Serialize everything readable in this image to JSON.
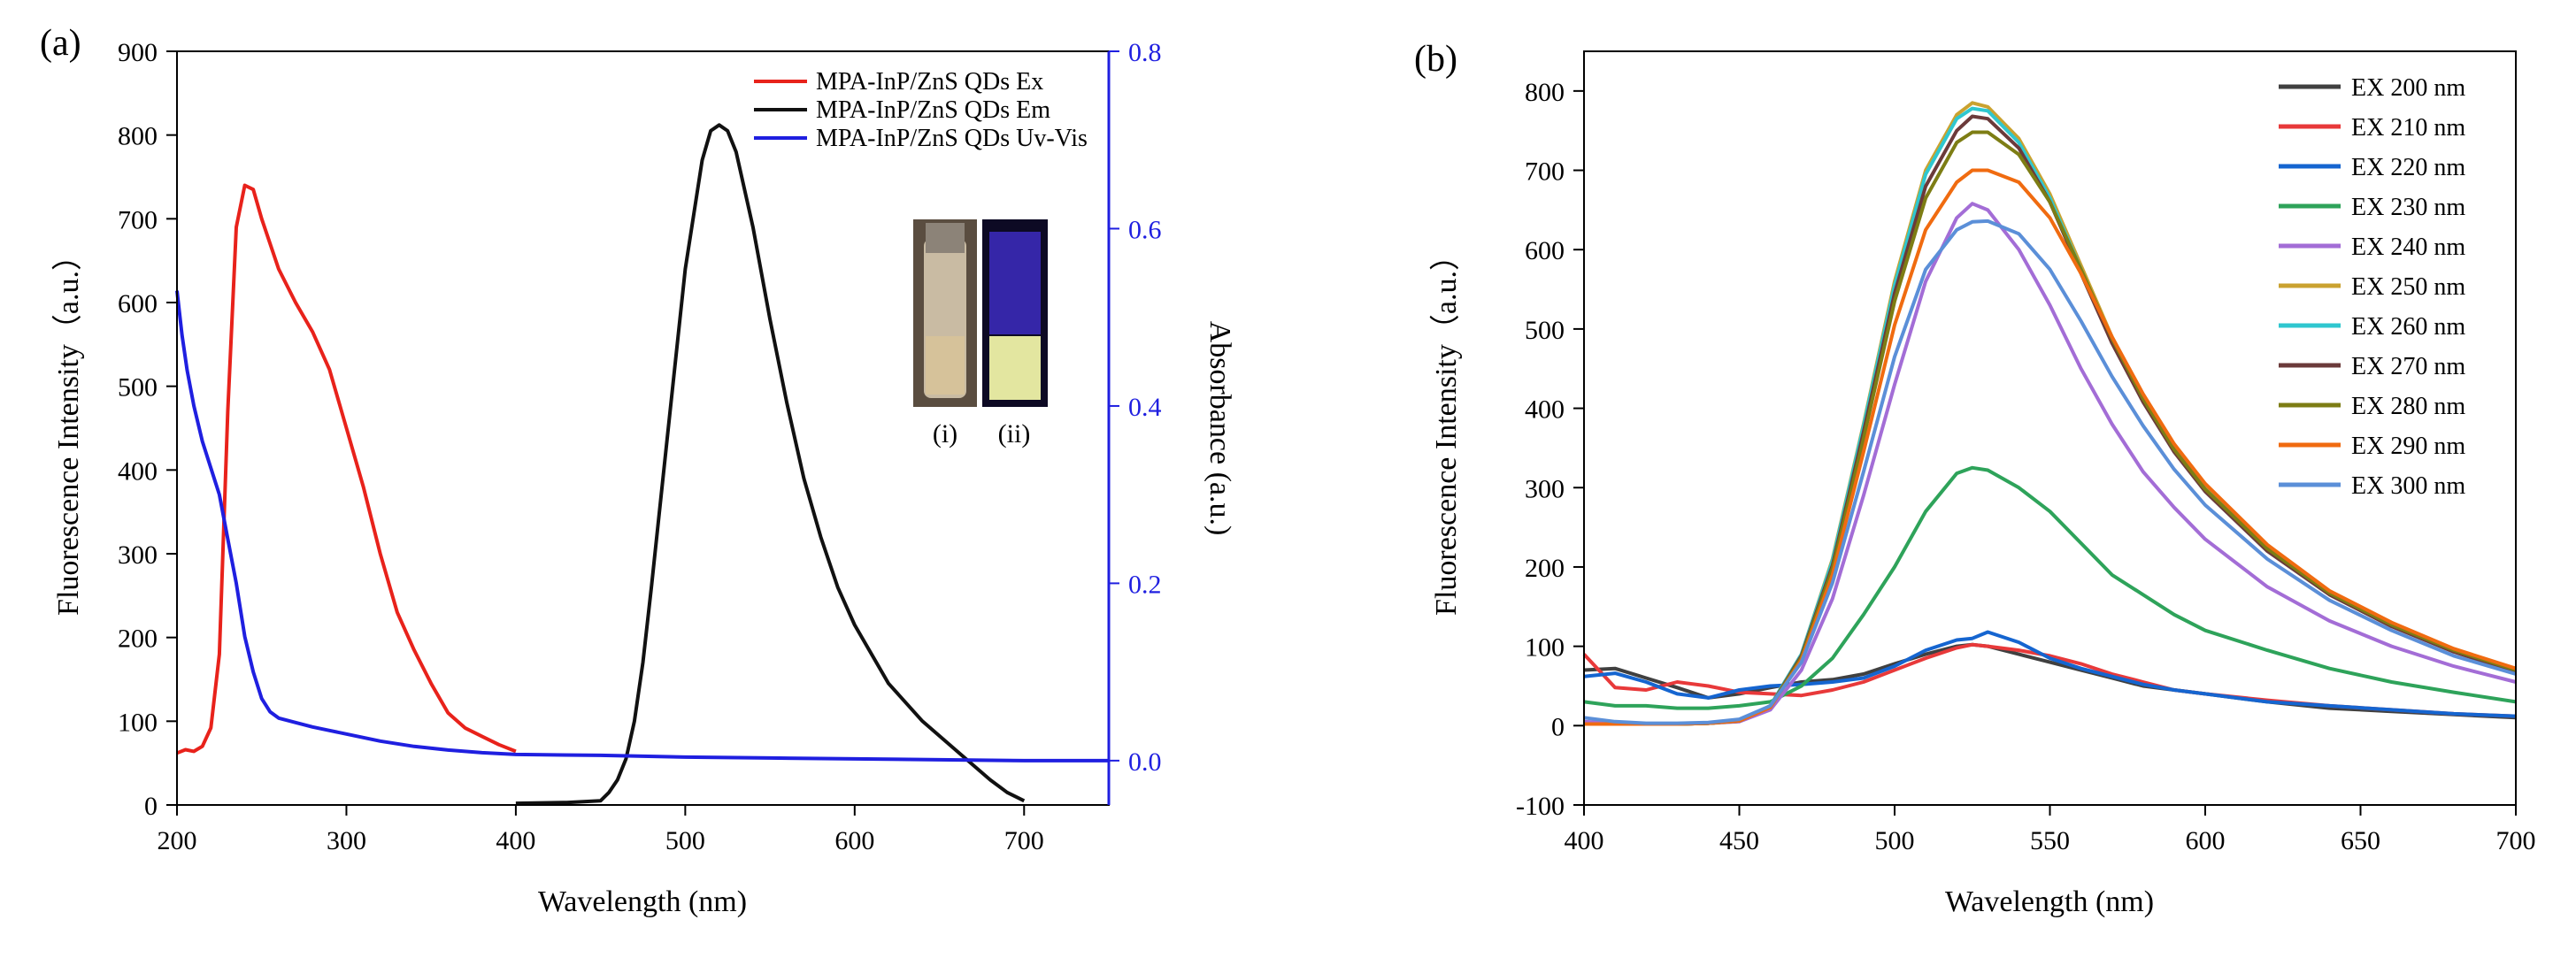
{
  "chart_data": [
    {
      "type": "line",
      "panel_label": "(a)",
      "xlabel": "Wavelength (nm)",
      "ylabel": "Fluorescence Intensity（a.u.）",
      "y2label": "Absorbance (a.u.)",
      "xlim": [
        200,
        750
      ],
      "ylim": [
        0,
        900
      ],
      "y2lim": [
        -0.05,
        0.8
      ],
      "xticks": [
        200,
        300,
        400,
        500,
        600,
        700
      ],
      "yticks": [
        0,
        100,
        200,
        300,
        400,
        500,
        600,
        700,
        800,
        900
      ],
      "y2ticks": [
        "0.0",
        "0.2",
        "0.4",
        "0.6",
        "0.8"
      ],
      "legend_position": "top-right",
      "inset": {
        "labels": [
          "(i)",
          "(ii)"
        ]
      },
      "series": [
        {
          "name": "MPA-InP/ZnS QDs Ex",
          "color": "#e8221b",
          "axis": "left",
          "x": [
            200,
            205,
            210,
            215,
            220,
            225,
            230,
            235,
            240,
            245,
            250,
            260,
            270,
            280,
            290,
            300,
            310,
            320,
            330,
            340,
            350,
            360,
            370,
            380,
            390,
            400
          ],
          "y": [
            62,
            66,
            64,
            70,
            92,
            180,
            470,
            690,
            740,
            735,
            700,
            640,
            600,
            565,
            520,
            450,
            380,
            300,
            230,
            185,
            145,
            110,
            92,
            82,
            72,
            64
          ]
        },
        {
          "name": "MPA-InP/ZnS QDs Em",
          "color": "#111111",
          "axis": "left",
          "x": [
            400,
            430,
            450,
            455,
            460,
            465,
            470,
            475,
            480,
            490,
            500,
            510,
            515,
            520,
            525,
            530,
            540,
            550,
            560,
            570,
            580,
            590,
            600,
            620,
            640,
            660,
            680,
            690,
            700
          ],
          "y": [
            2,
            3,
            5,
            15,
            30,
            55,
            100,
            170,
            260,
            450,
            640,
            770,
            805,
            812,
            805,
            780,
            690,
            580,
            480,
            390,
            320,
            260,
            215,
            145,
            100,
            65,
            30,
            15,
            5
          ]
        },
        {
          "name": "MPA-InP/ZnS QDs Uv-Vis",
          "color": "#1f1fe0",
          "axis": "right",
          "x": [
            200,
            203,
            206,
            210,
            215,
            220,
            225,
            230,
            235,
            240,
            245,
            250,
            255,
            260,
            270,
            280,
            290,
            300,
            320,
            340,
            360,
            380,
            400,
            450,
            500,
            550,
            600,
            650,
            700,
            750
          ],
          "y": [
            0.53,
            0.48,
            0.44,
            0.4,
            0.36,
            0.33,
            0.3,
            0.25,
            0.2,
            0.14,
            0.1,
            0.07,
            0.055,
            0.048,
            0.043,
            0.038,
            0.034,
            0.03,
            0.022,
            0.016,
            0.012,
            0.009,
            0.007,
            0.006,
            0.004,
            0.003,
            0.002,
            0.001,
            0.0,
            0.0
          ]
        }
      ]
    },
    {
      "type": "line",
      "panel_label": "(b)",
      "xlabel": "Wavelength (nm)",
      "ylabel": "Fluorescence Intensity（a.u.）",
      "xlim": [
        400,
        700
      ],
      "ylim": [
        -100,
        850
      ],
      "xticks": [
        400,
        450,
        500,
        550,
        600,
        650,
        700
      ],
      "yticks": [
        -100,
        0,
        100,
        200,
        300,
        400,
        500,
        600,
        700,
        800
      ],
      "legend_position": "top-right",
      "x": [
        400,
        410,
        420,
        430,
        440,
        450,
        460,
        470,
        480,
        490,
        500,
        510,
        520,
        525,
        530,
        540,
        550,
        560,
        570,
        580,
        590,
        600,
        620,
        640,
        660,
        680,
        700
      ],
      "series": [
        {
          "name": "EX 200 nm",
          "color": "#404040",
          "y": [
            70,
            72,
            60,
            48,
            35,
            40,
            48,
            55,
            58,
            65,
            78,
            90,
            100,
            102,
            100,
            90,
            80,
            70,
            60,
            50,
            45,
            40,
            30,
            22,
            18,
            14,
            10
          ]
        },
        {
          "name": "EX 210 nm",
          "color": "#e8393a",
          "y": [
            90,
            48,
            45,
            55,
            50,
            42,
            40,
            38,
            45,
            55,
            70,
            85,
            98,
            102,
            100,
            95,
            88,
            78,
            65,
            55,
            45,
            40,
            32,
            25,
            20,
            15,
            12
          ]
        },
        {
          "name": "EX 220 nm",
          "color": "#1565d0",
          "y": [
            62,
            66,
            55,
            40,
            35,
            45,
            50,
            52,
            55,
            60,
            75,
            95,
            108,
            110,
            118,
            105,
            85,
            72,
            62,
            52,
            45,
            40,
            30,
            25,
            20,
            15,
            12
          ]
        },
        {
          "name": "EX 230 nm",
          "color": "#2ea35a",
          "y": [
            30,
            25,
            25,
            22,
            22,
            25,
            30,
            50,
            85,
            140,
            200,
            270,
            318,
            325,
            322,
            300,
            270,
            230,
            190,
            165,
            140,
            120,
            95,
            72,
            55,
            42,
            30
          ]
        },
        {
          "name": "EX 240 nm",
          "color": "#a36dd6",
          "y": [
            5,
            3,
            2,
            2,
            3,
            5,
            20,
            70,
            160,
            290,
            430,
            560,
            640,
            658,
            650,
            600,
            530,
            450,
            380,
            320,
            275,
            235,
            175,
            132,
            100,
            75,
            55
          ]
        },
        {
          "name": "EX 250 nm",
          "color": "#caa230",
          "y": [
            2,
            2,
            2,
            2,
            3,
            6,
            25,
            90,
            210,
            380,
            560,
            700,
            770,
            785,
            780,
            740,
            670,
            580,
            490,
            415,
            350,
            300,
            225,
            168,
            128,
            95,
            70
          ]
        },
        {
          "name": "EX 260 nm",
          "color": "#2fc7cf",
          "y": [
            2,
            2,
            2,
            2,
            3,
            6,
            25,
            90,
            208,
            378,
            555,
            695,
            765,
            778,
            775,
            735,
            665,
            575,
            487,
            412,
            348,
            298,
            223,
            166,
            127,
            94,
            69
          ]
        },
        {
          "name": "EX 270 nm",
          "color": "#6b3a3a",
          "y": [
            2,
            2,
            2,
            2,
            3,
            6,
            24,
            88,
            202,
            370,
            545,
            680,
            750,
            768,
            765,
            728,
            660,
            570,
            482,
            408,
            345,
            295,
            220,
            165,
            125,
            93,
            68
          ]
        },
        {
          "name": "EX 280 nm",
          "color": "#7d7d14",
          "y": [
            2,
            2,
            2,
            2,
            3,
            6,
            24,
            86,
            198,
            362,
            535,
            665,
            735,
            748,
            748,
            720,
            660,
            575,
            488,
            412,
            348,
            298,
            223,
            167,
            127,
            95,
            70
          ]
        },
        {
          "name": "EX 290 nm",
          "color": "#f06b10",
          "y": [
            2,
            2,
            2,
            2,
            3,
            6,
            23,
            83,
            190,
            345,
            505,
            625,
            685,
            700,
            700,
            685,
            640,
            570,
            490,
            418,
            355,
            305,
            228,
            170,
            130,
            97,
            72
          ]
        },
        {
          "name": "EX 300 nm",
          "color": "#5b8fd8",
          "y": [
            10,
            5,
            3,
            3,
            4,
            8,
            25,
            80,
            180,
            320,
            465,
            575,
            625,
            635,
            636,
            620,
            575,
            510,
            440,
            378,
            323,
            278,
            210,
            158,
            120,
            88,
            65
          ]
        }
      ]
    }
  ]
}
